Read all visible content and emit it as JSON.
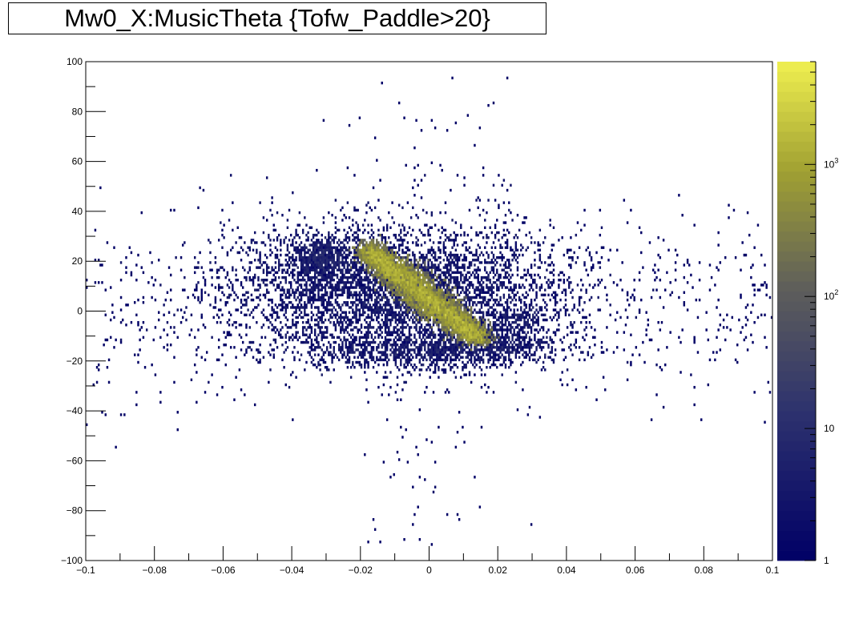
{
  "title": "Mw0_X:MusicTheta {Tofw_Paddle>20}",
  "chart_data": {
    "type": "heatmap",
    "title": "Mw0_X:MusicTheta {Tofw_Paddle>20}",
    "xlabel": "",
    "ylabel": "",
    "xlim": [
      -0.1,
      0.1
    ],
    "ylim": [
      -100,
      100
    ],
    "x_ticks": [
      -0.1,
      -0.08,
      -0.06,
      -0.04,
      -0.02,
      0,
      0.02,
      0.04,
      0.06,
      0.08,
      0.1
    ],
    "x_tick_labels": [
      "−0.1",
      "−0.08",
      "−0.06",
      "−0.04",
      "−0.02",
      "0",
      "0.02",
      "0.04",
      "0.06",
      "0.08",
      "0.1"
    ],
    "y_ticks": [
      -100,
      -80,
      -60,
      -40,
      -20,
      0,
      20,
      40,
      60,
      80,
      100
    ],
    "y_tick_labels": [
      "−100",
      "−80",
      "−60",
      "−40",
      "−20",
      "0",
      "20",
      "40",
      "60",
      "80",
      "100"
    ],
    "z_scale": "log",
    "zlim": [
      1,
      6000
    ],
    "z_ticks": [
      1,
      10,
      100,
      1000
    ],
    "z_tick_labels": [
      "1",
      "10",
      "10^2",
      "10^3"
    ],
    "palette": [
      "#000066",
      "#ffff55"
    ],
    "grid": false,
    "legend": "none",
    "density_regions": [
      {
        "x": -0.032,
        "y": 21,
        "sx": 0.0045,
        "sy": 4.5,
        "weight": 4
      },
      {
        "x": -0.01,
        "y": 8,
        "sx": 0.024,
        "sy": 13,
        "weight": 30
      },
      {
        "x": 0,
        "y": -16,
        "sx": 0.017,
        "sy": 3.5,
        "weight": 6
      },
      {
        "x": 0.02,
        "y": -12,
        "sx": 0.009,
        "sy": 3.5,
        "weight": 3
      },
      {
        "x": 0.027,
        "y": -3,
        "sx": 0.004,
        "sy": 2.5,
        "weight": 1
      }
    ],
    "core_band": {
      "from": [
        -0.018,
        24
      ],
      "to": [
        0.015,
        -11
      ],
      "half_width": 12,
      "peak": 4000
    }
  }
}
